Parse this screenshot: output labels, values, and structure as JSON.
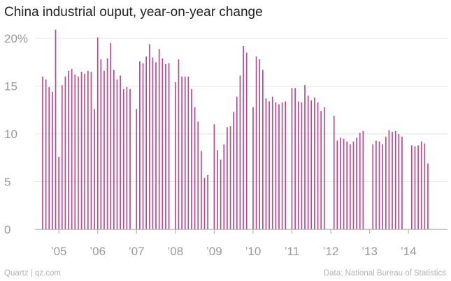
{
  "title": "China industrial ouput, year-on-year change",
  "source_left": "Quartz | qz.com",
  "source_right": "Data: National Bureau of Statistics",
  "colors": {
    "bar": "#b54c8e",
    "grid": "#e6e6e6",
    "baseline": "#a9a9a9",
    "text": "#222222",
    "muted": "#9a9a9a"
  },
  "chart_data": {
    "type": "bar",
    "title": "China industrial ouput, year-on-year change",
    "xlabel": "",
    "ylabel": "",
    "ylim": [
      0,
      21
    ],
    "y_ticks": [
      0,
      5,
      10,
      15,
      20
    ],
    "y_tick_labels": [
      "0",
      "5",
      "10",
      "15",
      "20%"
    ],
    "x_ticks": [
      {
        "label": "’05",
        "year": 2005
      },
      {
        "label": "’06",
        "year": 2006
      },
      {
        "label": "’07",
        "year": 2007
      },
      {
        "label": "’08",
        "year": 2008
      },
      {
        "label": "’09",
        "year": 2009
      },
      {
        "label": "’10",
        "year": 2010
      },
      {
        "label": "’11",
        "year": 2011
      },
      {
        "label": "’12",
        "year": 2012
      },
      {
        "label": "’13",
        "year": 2013
      },
      {
        "label": "’14",
        "year": 2014
      }
    ],
    "grid": true,
    "legend": "none",
    "start": {
      "year": 2004,
      "month": 8
    },
    "values": [
      16.0,
      15.7,
      14.9,
      14.4,
      20.9,
      7.6,
      15.1,
      16.0,
      16.6,
      16.8,
      16.2,
      16.0,
      16.5,
      16.3,
      16.6,
      16.5,
      12.6,
      20.1,
      17.8,
      16.6,
      17.9,
      19.5,
      16.7,
      15.7,
      16.1,
      14.7,
      14.9,
      14.7,
      null,
      12.6,
      17.6,
      17.4,
      18.1,
      19.4,
      18.0,
      17.5,
      18.9,
      17.9,
      17.3,
      17.4,
      null,
      15.4,
      17.8,
      16.0,
      16.0,
      16.0,
      14.7,
      12.8,
      11.3,
      8.2,
      5.4,
      5.7,
      null,
      11.0,
      8.3,
      7.3,
      8.9,
      10.7,
      10.8,
      12.3,
      13.9,
      16.1,
      19.2,
      18.5,
      null,
      12.8,
      18.1,
      17.8,
      16.7,
      13.7,
      13.4,
      13.9,
      13.3,
      13.1,
      13.3,
      13.4,
      null,
      14.8,
      14.8,
      13.4,
      13.3,
      15.1,
      14.0,
      13.5,
      13.8,
      13.3,
      12.4,
      12.8,
      null,
      null,
      11.9,
      9.3,
      9.6,
      9.5,
      9.2,
      8.9,
      9.2,
      9.6,
      10.1,
      10.3,
      null,
      null,
      8.9,
      9.3,
      9.2,
      8.9,
      9.7,
      10.4,
      10.2,
      10.3,
      10.0,
      9.7,
      null,
      null,
      8.8,
      8.7,
      8.8,
      9.2,
      9.0,
      6.9
    ]
  }
}
